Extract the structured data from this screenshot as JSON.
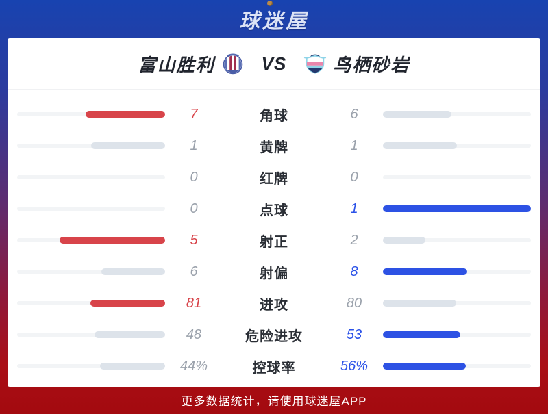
{
  "header": {
    "logo_text": "球迷屋"
  },
  "match": {
    "home_name": "富山胜利",
    "vs_label": "VS",
    "away_name": "鸟栖砂岩"
  },
  "stats": [
    {
      "label": "角球",
      "home_value": "7",
      "away_value": "6",
      "home_pct": 53.8,
      "away_pct": 46.2,
      "winner": "home"
    },
    {
      "label": "黄牌",
      "home_value": "1",
      "away_value": "1",
      "home_pct": 50,
      "away_pct": 50,
      "winner": "none"
    },
    {
      "label": "红牌",
      "home_value": "0",
      "away_value": "0",
      "home_pct": 0,
      "away_pct": 0,
      "winner": "none"
    },
    {
      "label": "点球",
      "home_value": "0",
      "away_value": "1",
      "home_pct": 0,
      "away_pct": 100,
      "winner": "away"
    },
    {
      "label": "射正",
      "home_value": "5",
      "away_value": "2",
      "home_pct": 71.4,
      "away_pct": 28.6,
      "winner": "home"
    },
    {
      "label": "射偏",
      "home_value": "6",
      "away_value": "8",
      "home_pct": 42.9,
      "away_pct": 57.1,
      "winner": "away"
    },
    {
      "label": "进攻",
      "home_value": "81",
      "away_value": "80",
      "home_pct": 50.3,
      "away_pct": 49.7,
      "winner": "home"
    },
    {
      "label": "危险进攻",
      "home_value": "48",
      "away_value": "53",
      "home_pct": 47.5,
      "away_pct": 52.5,
      "winner": "away"
    },
    {
      "label": "控球率",
      "home_value": "44%",
      "away_value": "56%",
      "home_pct": 44,
      "away_pct": 56,
      "winner": "away"
    }
  ],
  "footer": {
    "text": "更多数据统计，请使用球迷屋APP"
  },
  "colors": {
    "home_accent": "#d8444a",
    "away_accent": "#2d52e4",
    "bar_track": "#f2f4f6",
    "bar_neutral": "#dde3ea",
    "value_gray": "#9aa1ab",
    "bg_top_blue": "#1843b0",
    "bg_bottom_red": "#a30a0f"
  }
}
